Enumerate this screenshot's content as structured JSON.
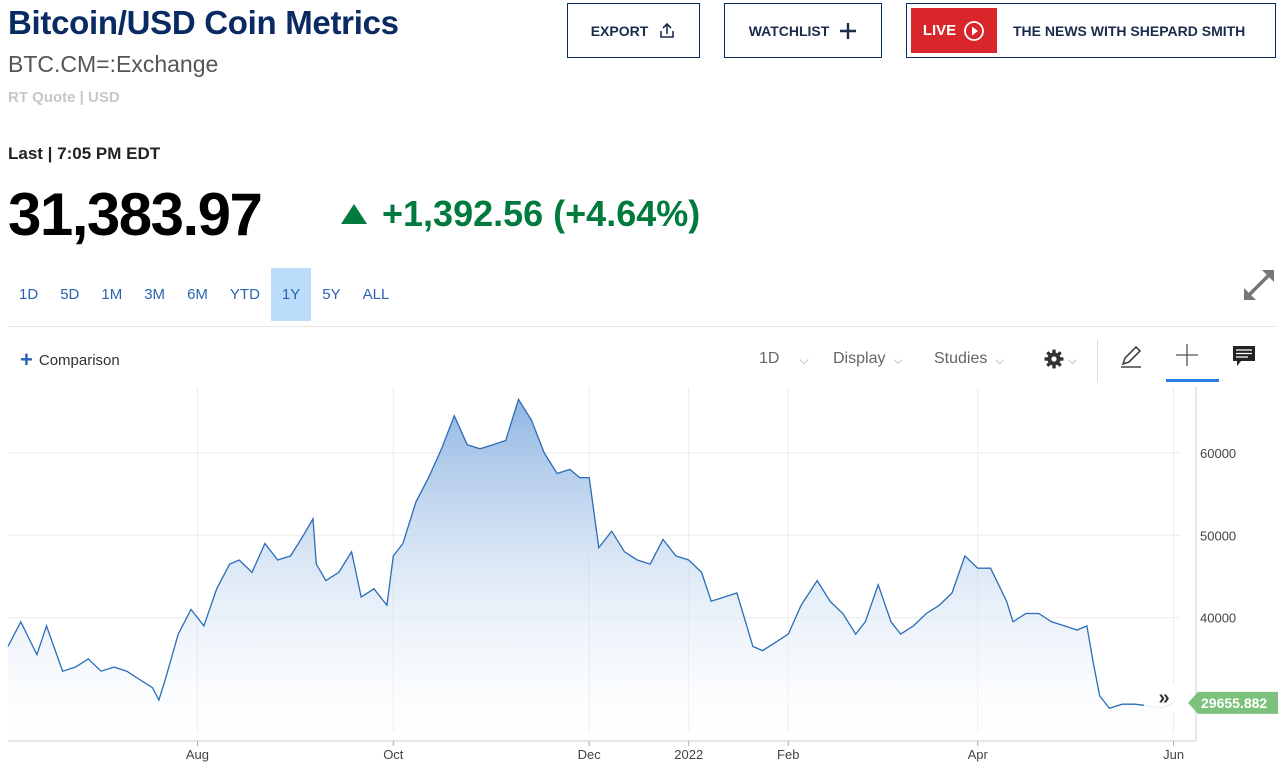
{
  "header": {
    "title": "Bitcoin/USD Coin Metrics",
    "symbol": "BTC.CM=:Exchange",
    "quote_type": "RT Quote | USD"
  },
  "buttons": {
    "export_label": "EXPORT",
    "watchlist_label": "WATCHLIST",
    "live_label": "LIVE",
    "live_show": "THE NEWS WITH SHEPARD SMITH"
  },
  "quote": {
    "last_label": "Last | 7:05 PM EDT",
    "price": "31,383.97",
    "change": "+1,392.56 (+4.64%)",
    "direction": "up"
  },
  "ranges": [
    {
      "label": "1D",
      "active": false
    },
    {
      "label": "5D",
      "active": false
    },
    {
      "label": "1M",
      "active": false
    },
    {
      "label": "3M",
      "active": false
    },
    {
      "label": "6M",
      "active": false
    },
    {
      "label": "YTD",
      "active": false
    },
    {
      "label": "1Y",
      "active": true
    },
    {
      "label": "5Y",
      "active": false
    },
    {
      "label": "ALL",
      "active": false
    }
  ],
  "toolbar": {
    "comparison_label": "Comparison",
    "interval_label": "1D",
    "display_label": "Display",
    "studies_label": "Studies"
  },
  "colors": {
    "title": "#0a2a63",
    "positive": "#007a3d",
    "line": "#2a6db5",
    "price_tag": "#7cc27c",
    "live_red": "#d8262b"
  },
  "chart_data": {
    "type": "area",
    "title": "",
    "xlabel": "",
    "ylabel": "",
    "ylim": [
      26000,
      68000
    ],
    "yticks": [
      40000,
      50000,
      60000
    ],
    "ytick_labels": [
      "40000",
      "50000",
      "60000"
    ],
    "xlim": [
      "2021-06-03",
      "2022-06-03"
    ],
    "xticks": [
      {
        "date": "2021-08-01",
        "label": "Aug"
      },
      {
        "date": "2021-10-01",
        "label": "Oct"
      },
      {
        "date": "2021-12-01",
        "label": "Dec"
      },
      {
        "date": "2022-01-01",
        "label": "2022"
      },
      {
        "date": "2022-02-01",
        "label": "Feb"
      },
      {
        "date": "2022-04-01",
        "label": "Apr"
      },
      {
        "date": "2022-06-01",
        "label": "Jun"
      }
    ],
    "grid": true,
    "legend": "none",
    "last_value_label": "29655.882",
    "series": [
      {
        "x": [
          "2021-06-03",
          "2021-06-07",
          "2021-06-12",
          "2021-06-15",
          "2021-06-20",
          "2021-06-24",
          "2021-06-28",
          "2021-07-02",
          "2021-07-06",
          "2021-07-10",
          "2021-07-14",
          "2021-07-18",
          "2021-07-20",
          "2021-07-22",
          "2021-07-26",
          "2021-07-30",
          "2021-08-03",
          "2021-08-07",
          "2021-08-11",
          "2021-08-14",
          "2021-08-18",
          "2021-08-22",
          "2021-08-26",
          "2021-08-30",
          "2021-09-03",
          "2021-09-06",
          "2021-09-07",
          "2021-09-10",
          "2021-09-14",
          "2021-09-18",
          "2021-09-21",
          "2021-09-25",
          "2021-09-29",
          "2021-10-01",
          "2021-10-04",
          "2021-10-08",
          "2021-10-12",
          "2021-10-16",
          "2021-10-20",
          "2021-10-24",
          "2021-10-28",
          "2021-11-01",
          "2021-11-05",
          "2021-11-09",
          "2021-11-13",
          "2021-11-17",
          "2021-11-21",
          "2021-11-25",
          "2021-11-28",
          "2021-12-01",
          "2021-12-04",
          "2021-12-08",
          "2021-12-12",
          "2021-12-16",
          "2021-12-20",
          "2021-12-24",
          "2021-12-28",
          "2022-01-01",
          "2022-01-05",
          "2022-01-08",
          "2022-01-12",
          "2022-01-16",
          "2022-01-21",
          "2022-01-24",
          "2022-01-28",
          "2022-02-01",
          "2022-02-05",
          "2022-02-10",
          "2022-02-14",
          "2022-02-18",
          "2022-02-22",
          "2022-02-25",
          "2022-03-01",
          "2022-03-05",
          "2022-03-08",
          "2022-03-12",
          "2022-03-16",
          "2022-03-20",
          "2022-03-24",
          "2022-03-28",
          "2022-04-01",
          "2022-04-05",
          "2022-04-10",
          "2022-04-12",
          "2022-04-16",
          "2022-04-20",
          "2022-04-24",
          "2022-04-28",
          "2022-05-02",
          "2022-05-05",
          "2022-05-07",
          "2022-05-09",
          "2022-05-12",
          "2022-05-16",
          "2022-05-20",
          "2022-05-24",
          "2022-05-28",
          "2022-06-01"
        ],
        "y": [
          36500,
          39500,
          35500,
          39000,
          33500,
          34000,
          35000,
          33500,
          34000,
          33500,
          32500,
          31500,
          30000,
          32500,
          38000,
          41000,
          39000,
          43500,
          46500,
          47000,
          45500,
          49000,
          47000,
          47500,
          50000,
          52000,
          46500,
          44500,
          45500,
          48000,
          42500,
          43500,
          41500,
          47500,
          49000,
          54000,
          57000,
          60500,
          64500,
          61000,
          60500,
          61000,
          61500,
          66500,
          64000,
          60000,
          57500,
          58000,
          57000,
          57000,
          48500,
          50500,
          48000,
          47000,
          46500,
          49500,
          47500,
          47000,
          45500,
          42000,
          42500,
          43000,
          36500,
          36000,
          37000,
          38000,
          41500,
          44500,
          42000,
          40500,
          38000,
          39500,
          44000,
          39500,
          38000,
          39000,
          40500,
          41500,
          43000,
          47500,
          46000,
          46000,
          42000,
          39500,
          40500,
          40500,
          39500,
          39000,
          38500,
          39000,
          34500,
          30500,
          29000,
          29500,
          29500,
          29300,
          29000,
          29655.882
        ]
      }
    ]
  }
}
